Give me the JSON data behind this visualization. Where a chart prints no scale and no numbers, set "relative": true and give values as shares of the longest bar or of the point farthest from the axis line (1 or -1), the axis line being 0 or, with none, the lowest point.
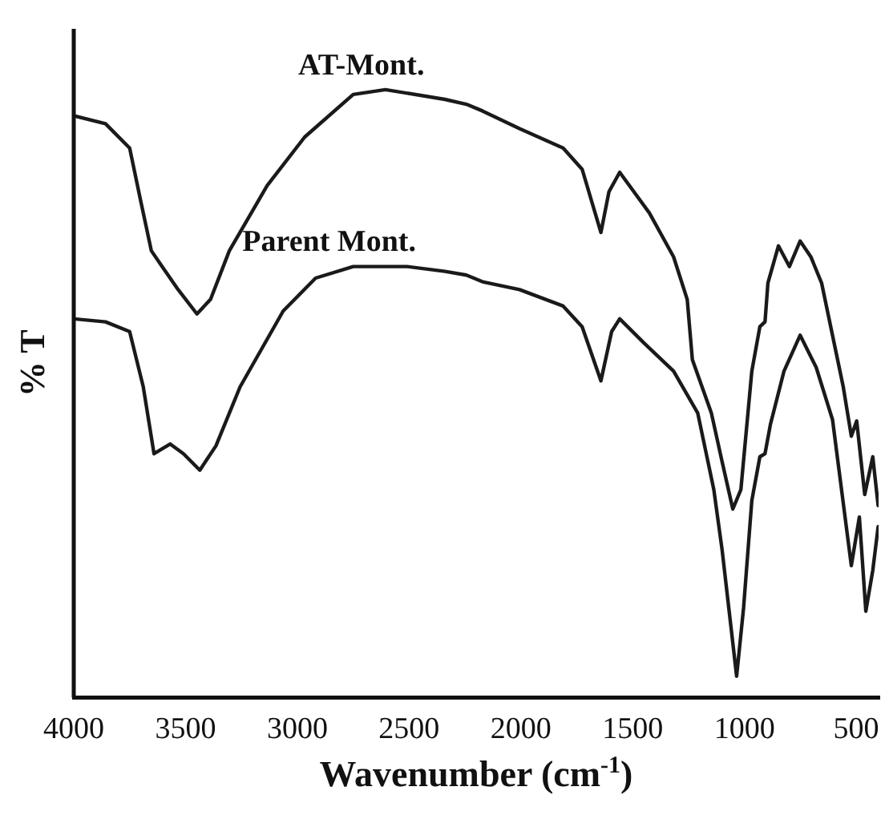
{
  "chart_data": {
    "type": "line",
    "xlabel": "Wavenumber (cm$^{-1}$)",
    "ylabel": "% T",
    "relative": true,
    "xlim": [
      4000,
      400
    ],
    "xticks": [
      4000,
      3500,
      3000,
      2500,
      2000,
      1500,
      1000,
      500
    ],
    "grid": false,
    "legend": false,
    "marker": "none",
    "line_style": "solid",
    "series": [
      {
        "name": "AT-Mont.",
        "color": "#1a1a1a",
        "x": [
          4000,
          3858,
          3750,
          3700,
          3653,
          3605,
          3533,
          3449,
          3388,
          3304,
          3135,
          2967,
          2750,
          2606,
          2340,
          2244,
          2172,
          2006,
          1811,
          1726,
          1642,
          1606,
          1558,
          1425,
          1317,
          1256,
          1233,
          1148,
          1100,
          1052,
          1016,
          967,
          931,
          908,
          895,
          848,
          799,
          751,
          703,
          655,
          558,
          522,
          498,
          462,
          426,
          402
        ],
        "values": [
          0.957,
          0.944,
          0.904,
          0.816,
          0.735,
          0.709,
          0.671,
          0.631,
          0.655,
          0.735,
          0.842,
          0.922,
          0.992,
          1.0,
          0.984,
          0.976,
          0.965,
          0.936,
          0.904,
          0.869,
          0.765,
          0.832,
          0.864,
          0.797,
          0.725,
          0.655,
          0.556,
          0.468,
          0.388,
          0.31,
          0.342,
          0.537,
          0.61,
          0.618,
          0.682,
          0.743,
          0.709,
          0.751,
          0.725,
          0.682,
          0.511,
          0.43,
          0.455,
          0.334,
          0.396,
          0.316
        ]
      },
      {
        "name": "Parent Mont.",
        "color": "#1a1a1a",
        "x": [
          4000,
          3858,
          3750,
          3689,
          3641,
          3569,
          3509,
          3436,
          3364,
          3256,
          3063,
          2918,
          2750,
          2509,
          2340,
          2244,
          2172,
          2006,
          1811,
          1726,
          1642,
          1594,
          1558,
          1449,
          1317,
          1209,
          1137,
          1100,
          1064,
          1035,
          1004,
          967,
          931,
          908,
          884,
          823,
          751,
          679,
          606,
          522,
          486,
          457,
          426,
          402
        ],
        "values": [
          0.623,
          0.618,
          0.602,
          0.511,
          0.401,
          0.417,
          0.401,
          0.374,
          0.414,
          0.511,
          0.636,
          0.69,
          0.709,
          0.709,
          0.701,
          0.695,
          0.684,
          0.671,
          0.644,
          0.61,
          0.521,
          0.602,
          0.623,
          0.583,
          0.537,
          0.468,
          0.342,
          0.243,
          0.128,
          0.035,
          0.147,
          0.324,
          0.396,
          0.401,
          0.449,
          0.537,
          0.596,
          0.543,
          0.457,
          0.217,
          0.297,
          0.142,
          0.209,
          0.281
        ]
      }
    ]
  }
}
